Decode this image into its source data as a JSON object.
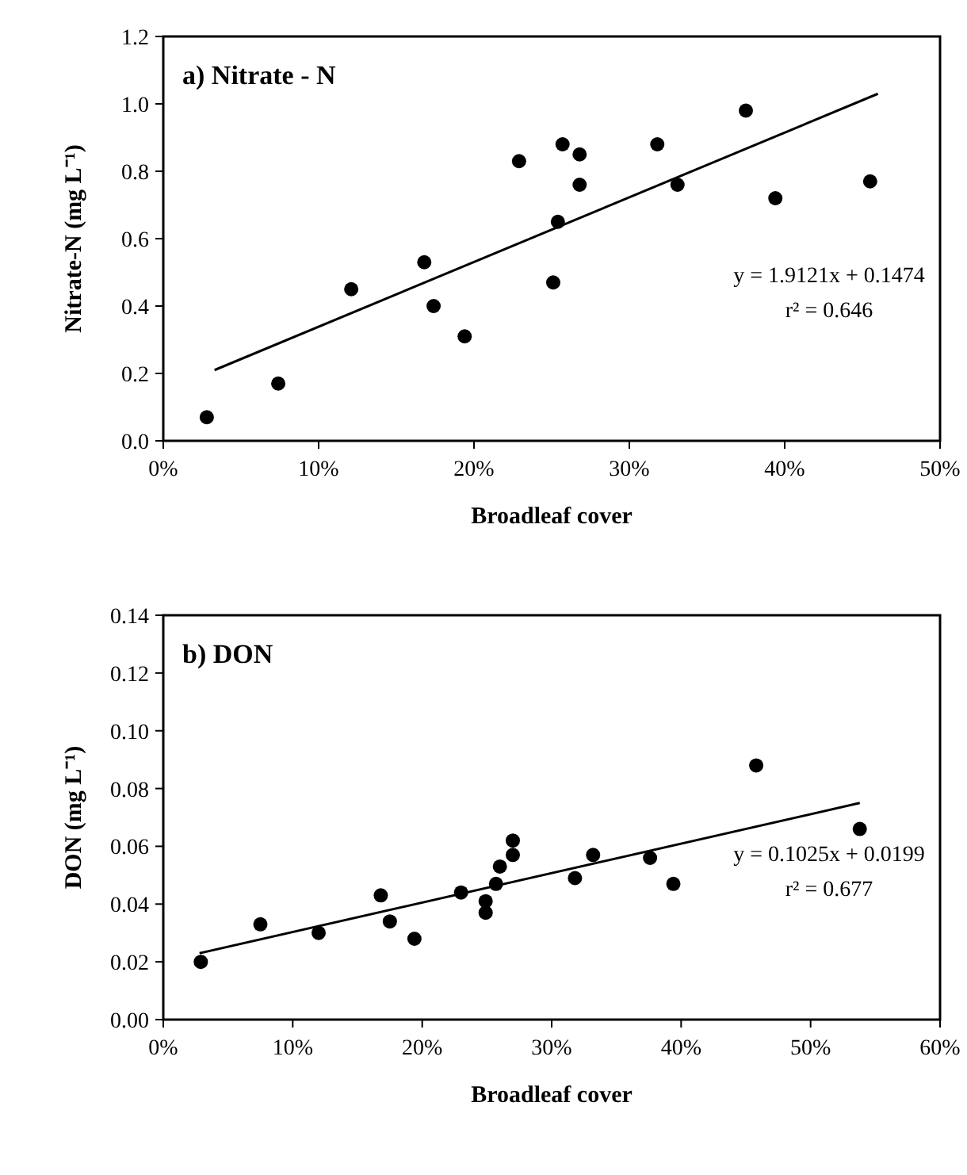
{
  "chart_data": [
    {
      "type": "scatter",
      "title": "a) Nitrate - N",
      "xlabel": "Broadleaf cover",
      "ylabel": "Nitrate-N (mg L⁻¹)",
      "grid": false,
      "xlim": [
        0,
        50
      ],
      "xticks": [
        {
          "value": 0,
          "label": "0%"
        },
        {
          "value": 10,
          "label": "10%"
        },
        {
          "value": 20,
          "label": "20%"
        },
        {
          "value": 30,
          "label": "30%"
        },
        {
          "value": 40,
          "label": "40%"
        },
        {
          "value": 50,
          "label": "50%"
        }
      ],
      "ylim": [
        0,
        1.2
      ],
      "yticks": [
        {
          "value": 0,
          "label": "0.0"
        },
        {
          "value": 0.2,
          "label": "0.2"
        },
        {
          "value": 0.4,
          "label": "0.4"
        },
        {
          "value": 0.6,
          "label": "0.6"
        },
        {
          "value": 0.8,
          "label": "0.8"
        },
        {
          "value": 1.0,
          "label": "1.0"
        },
        {
          "value": 1.2,
          "label": "1.2"
        }
      ],
      "annotations": [
        "y = 1.9121x + 0.1474",
        "r² = 0.646"
      ],
      "series": [
        {
          "marker": "circle",
          "color": "#000000",
          "x": [
            2.8,
            7.4,
            12.1,
            16.8,
            17.4,
            19.4,
            22.9,
            25.1,
            25.4,
            25.7,
            26.8,
            26.8,
            31.8,
            33.1,
            37.5,
            39.4,
            45.5
          ],
          "values": [
            0.07,
            0.17,
            0.45,
            0.53,
            0.4,
            0.31,
            0.83,
            0.47,
            0.65,
            0.88,
            0.85,
            0.76,
            0.88,
            0.76,
            0.98,
            0.72,
            0.77
          ]
        },
        {
          "type": "line",
          "color": "#000000",
          "x": [
            3.3,
            46
          ],
          "values": [
            0.21,
            1.03
          ]
        }
      ]
    },
    {
      "type": "scatter",
      "title": "b) DON",
      "xlabel": "Broadleaf cover",
      "ylabel": "DON (mg L⁻¹)",
      "grid": false,
      "xlim": [
        0,
        60
      ],
      "xticks": [
        {
          "value": 0,
          "label": "0%"
        },
        {
          "value": 10,
          "label": "10%"
        },
        {
          "value": 20,
          "label": "20%"
        },
        {
          "value": 30,
          "label": "30%"
        },
        {
          "value": 40,
          "label": "40%"
        },
        {
          "value": 50,
          "label": "50%"
        },
        {
          "value": 60,
          "label": "60%"
        }
      ],
      "ylim": [
        0,
        0.14
      ],
      "yticks": [
        {
          "value": 0,
          "label": "0.00"
        },
        {
          "value": 0.02,
          "label": "0.02"
        },
        {
          "value": 0.04,
          "label": "0.04"
        },
        {
          "value": 0.06,
          "label": "0.06"
        },
        {
          "value": 0.08,
          "label": "0.08"
        },
        {
          "value": 0.1,
          "label": "0.10"
        },
        {
          "value": 0.12,
          "label": "0.12"
        },
        {
          "value": 0.14,
          "label": "0.14"
        }
      ],
      "annotations": [
        "y = 0.1025x + 0.0199",
        "r² = 0.677"
      ],
      "series": [
        {
          "marker": "circle",
          "color": "#000000",
          "x": [
            2.9,
            7.5,
            12.0,
            16.8,
            17.5,
            19.4,
            23.0,
            24.9,
            24.9,
            25.7,
            26.0,
            27.0,
            27.0,
            31.8,
            33.2,
            37.6,
            39.4,
            45.8,
            53.8
          ],
          "values": [
            0.02,
            0.033,
            0.03,
            0.043,
            0.034,
            0.028,
            0.044,
            0.041,
            0.037,
            0.047,
            0.053,
            0.062,
            0.057,
            0.049,
            0.057,
            0.056,
            0.047,
            0.088,
            0.066
          ]
        },
        {
          "type": "line",
          "color": "#000000",
          "x": [
            2.8,
            53.8
          ],
          "values": [
            0.023,
            0.075
          ]
        }
      ]
    }
  ]
}
